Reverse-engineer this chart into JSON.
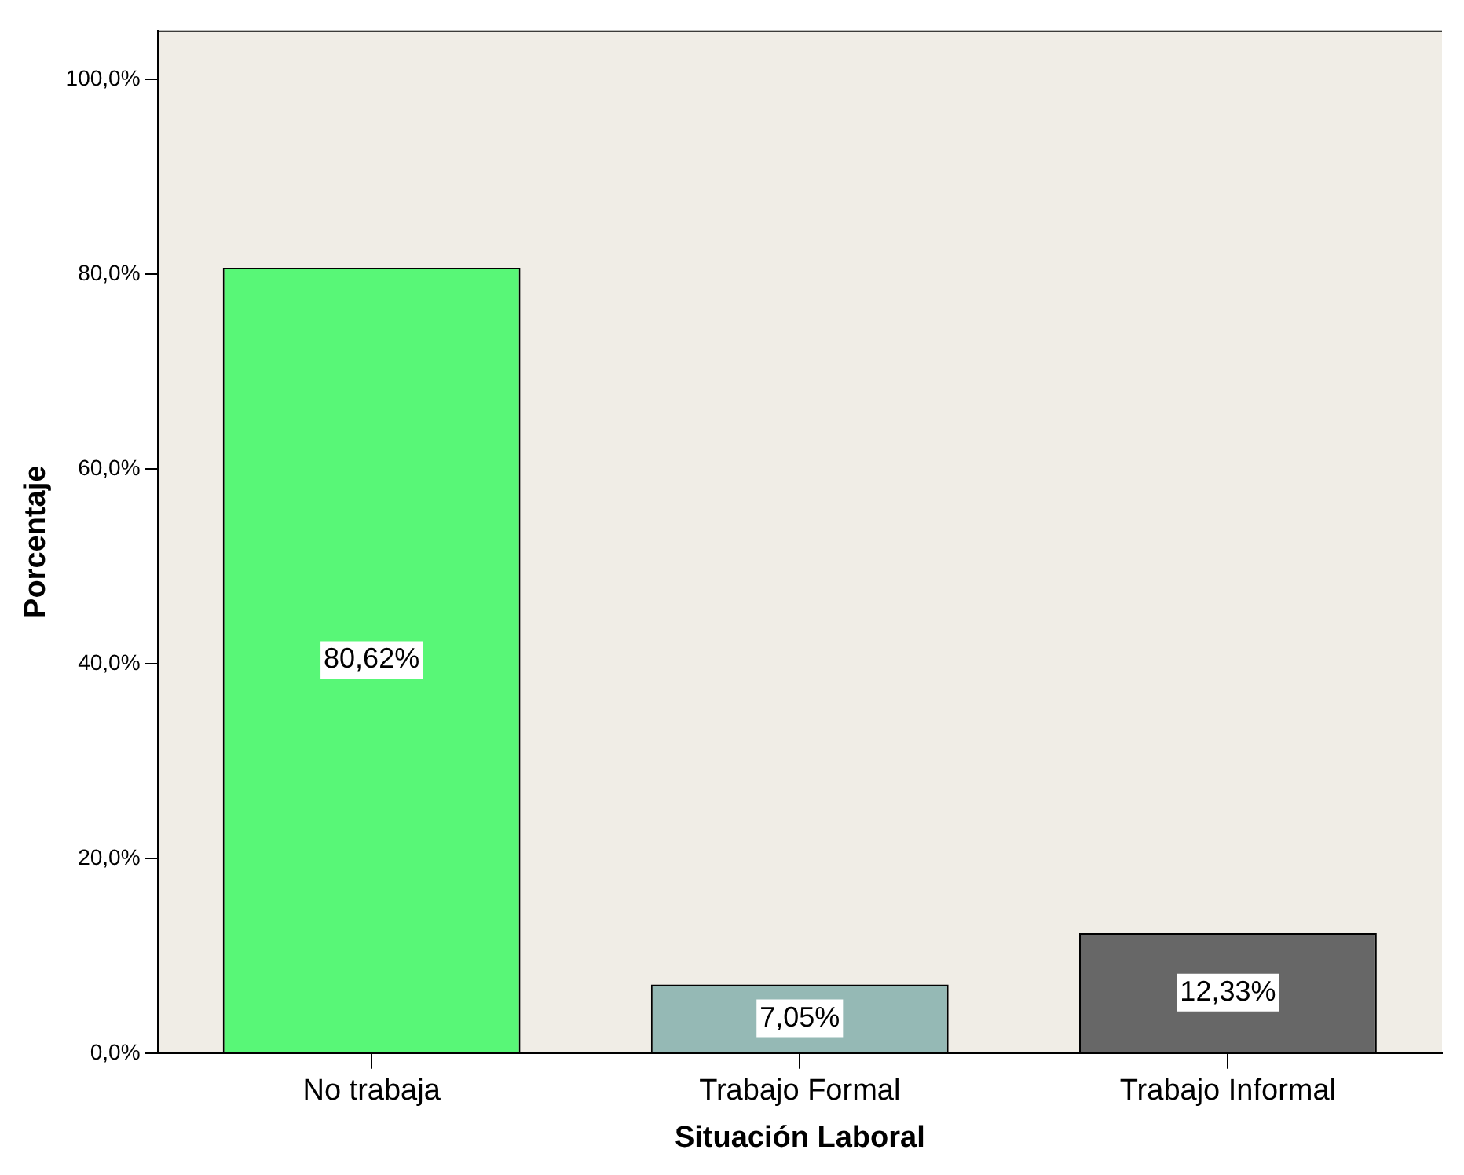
{
  "chart_data": {
    "type": "bar",
    "xlabel": "Situación Laboral",
    "ylabel": "Porcentaje",
    "categories": [
      "No trabaja",
      "Trabajo Formal",
      "Trabajo Informal"
    ],
    "values": [
      80.62,
      7.05,
      12.33
    ],
    "colors": [
      "#58f777",
      "#95b9b5",
      "#676767"
    ],
    "value_labels": [
      "80,62%",
      "7,05%",
      "12,33%"
    ],
    "ylim": [
      0,
      105
    ],
    "yticks": [
      {
        "value": 0,
        "label": "0,0%"
      },
      {
        "value": 20,
        "label": "20,0%"
      },
      {
        "value": 40,
        "label": "40,0%"
      },
      {
        "value": 60,
        "label": "60,0%"
      },
      {
        "value": 80,
        "label": "80,0%"
      },
      {
        "value": 100,
        "label": "100,0%"
      }
    ],
    "grid": false,
    "legend": false
  }
}
